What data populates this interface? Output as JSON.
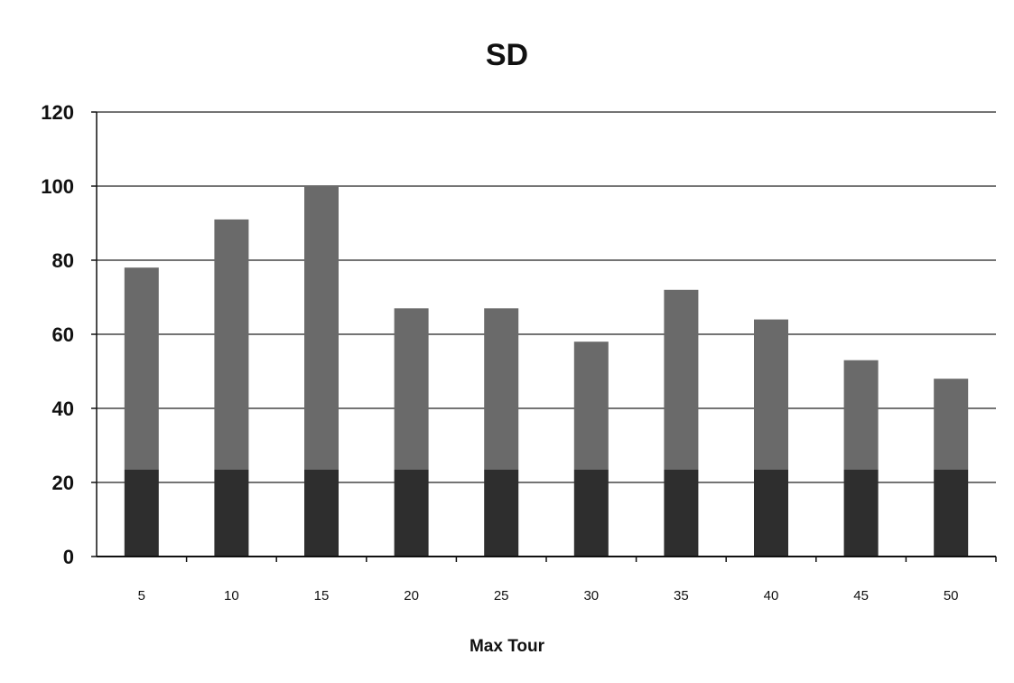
{
  "chart_data": {
    "type": "bar",
    "title": "SD",
    "xlabel": "Max Tour",
    "ylabel": "",
    "ylim": [
      0,
      120
    ],
    "yticks": [
      "0",
      "20",
      "40",
      "60",
      "80",
      "100",
      "120"
    ],
    "categories": [
      "5",
      "10",
      "15",
      "20",
      "25",
      "30",
      "35",
      "40",
      "45",
      "50"
    ],
    "values": [
      78,
      91,
      100,
      67,
      67,
      58,
      72,
      64,
      53,
      48
    ],
    "grid": true,
    "colors": {
      "bar_upper": "#6a6a6a",
      "bar_lower": "#2e2e2e",
      "grid": "#222222"
    }
  }
}
